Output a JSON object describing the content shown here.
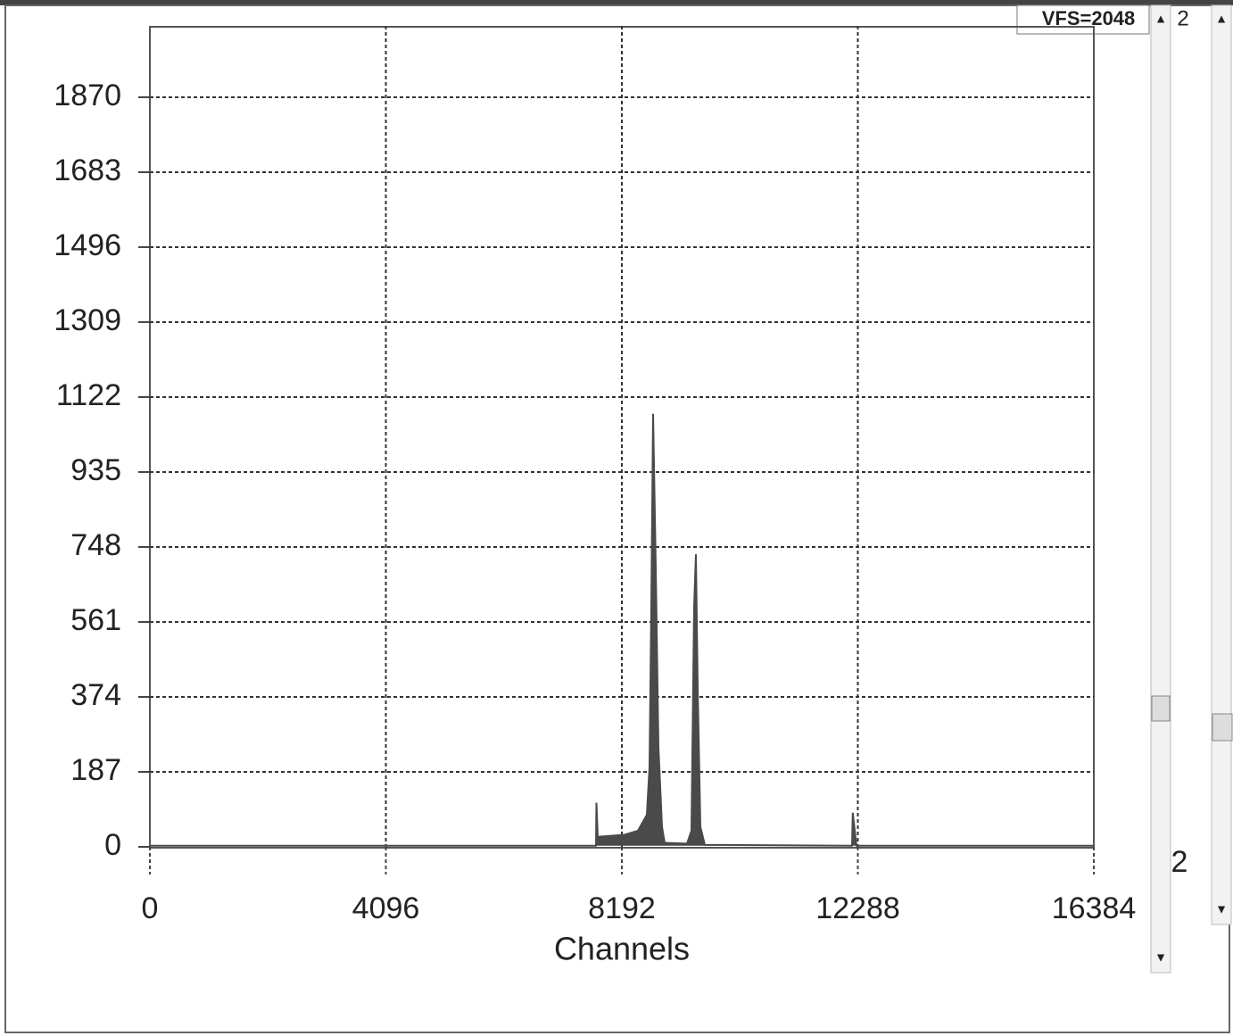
{
  "chart_data": {
    "type": "area",
    "x_label": "Channels",
    "xlim": [
      0,
      16384
    ],
    "xticks": [
      0,
      4096,
      8192,
      12288,
      16384
    ],
    "ylim": [
      0,
      2048
    ],
    "yticks": [
      0,
      187,
      374,
      561,
      748,
      935,
      1122,
      1309,
      1496,
      1683,
      1870
    ],
    "grid": true,
    "series": [
      {
        "color": "#4a4a4a",
        "x": [
          0,
          7743,
          7750,
          7774,
          8239,
          8471,
          8626,
          8672,
          8703,
          8734,
          8780,
          8827,
          8889,
          8935,
          9323,
          9400,
          9446,
          9477,
          9508,
          9555,
          9632,
          12188,
          12200,
          12265,
          16384
        ],
        "values": [
          3,
          3,
          110,
          25,
          30,
          40,
          80,
          200,
          600,
          1080,
          700,
          250,
          50,
          10,
          8,
          40,
          600,
          730,
          400,
          50,
          5,
          3,
          85,
          3,
          3
        ]
      }
    ]
  },
  "ui": {
    "vfs_label": "VFS=2048",
    "top_field": "2",
    "side_label": "2"
  }
}
